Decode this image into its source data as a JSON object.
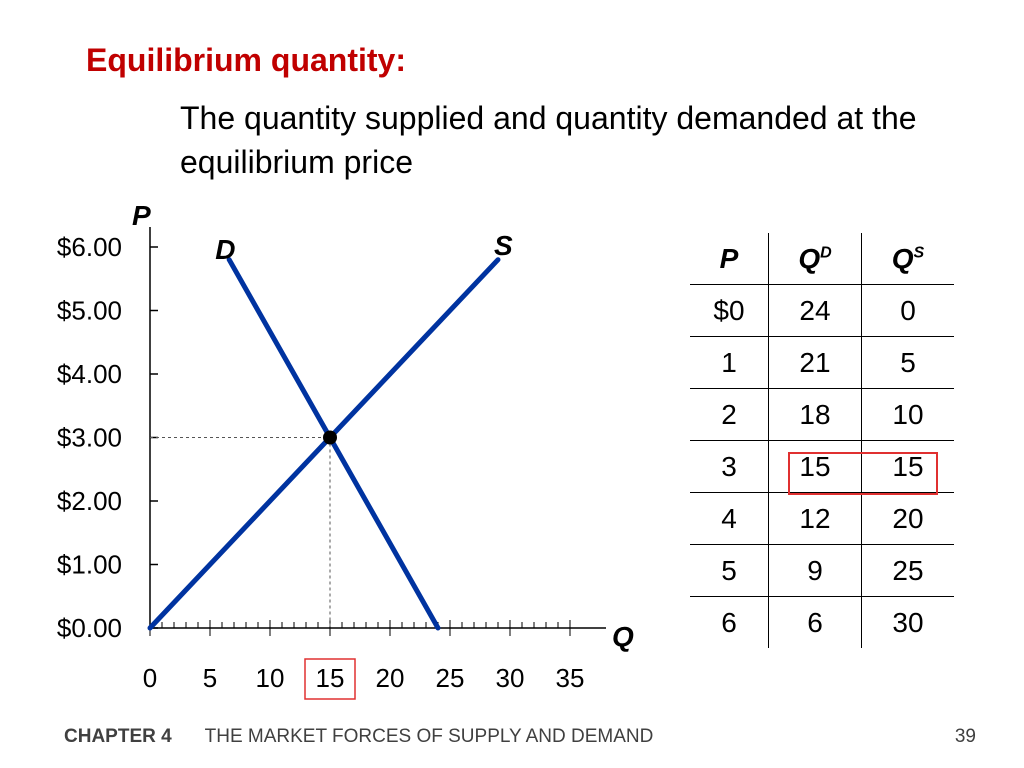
{
  "slide": {
    "heading": "Equilibrium quantity:",
    "subtext": "The quantity supplied and quantity demanded at the equilibrium price",
    "footer": {
      "chapter": "CHAPTER 4",
      "title": "THE MARKET FORCES OF SUPPLY AND DEMAND",
      "page": "39"
    }
  },
  "colors": {
    "heading": "#c00000",
    "curves": "#0033a0",
    "highlight": "#e03030"
  },
  "chart_data": {
    "type": "line",
    "ylabel": "P",
    "xlabel": "Q",
    "xlim": [
      0,
      38
    ],
    "ylim": [
      0,
      6
    ],
    "x_ticks": [
      "0",
      "5",
      "10",
      "15",
      "20",
      "25",
      "30",
      "35"
    ],
    "y_ticks": [
      "$0.00",
      "$1.00",
      "$2.00",
      "$3.00",
      "$4.00",
      "$5.00",
      "$6.00"
    ],
    "highlighted_x_tick": "15",
    "series": [
      {
        "name": "D",
        "points": [
          [
            24,
            0
          ],
          [
            6.6,
            5.8
          ]
        ]
      },
      {
        "name": "S",
        "points": [
          [
            0,
            0
          ],
          [
            29,
            5.8
          ]
        ]
      }
    ],
    "equilibrium": {
      "x": 15,
      "y": 3
    },
    "grid": false
  },
  "table": {
    "headers": {
      "p": "P",
      "qd_base": "Q",
      "qd_sup": "D",
      "qs_base": "Q",
      "qs_sup": "S"
    },
    "rows": [
      [
        "$0",
        "24",
        "0"
      ],
      [
        "1",
        "21",
        "5"
      ],
      [
        "2",
        "18",
        "10"
      ],
      [
        "3",
        "15",
        "15"
      ],
      [
        "4",
        "12",
        "20"
      ],
      [
        "5",
        "9",
        "25"
      ],
      [
        "6",
        "6",
        "30"
      ]
    ],
    "highlighted_row": 3
  }
}
